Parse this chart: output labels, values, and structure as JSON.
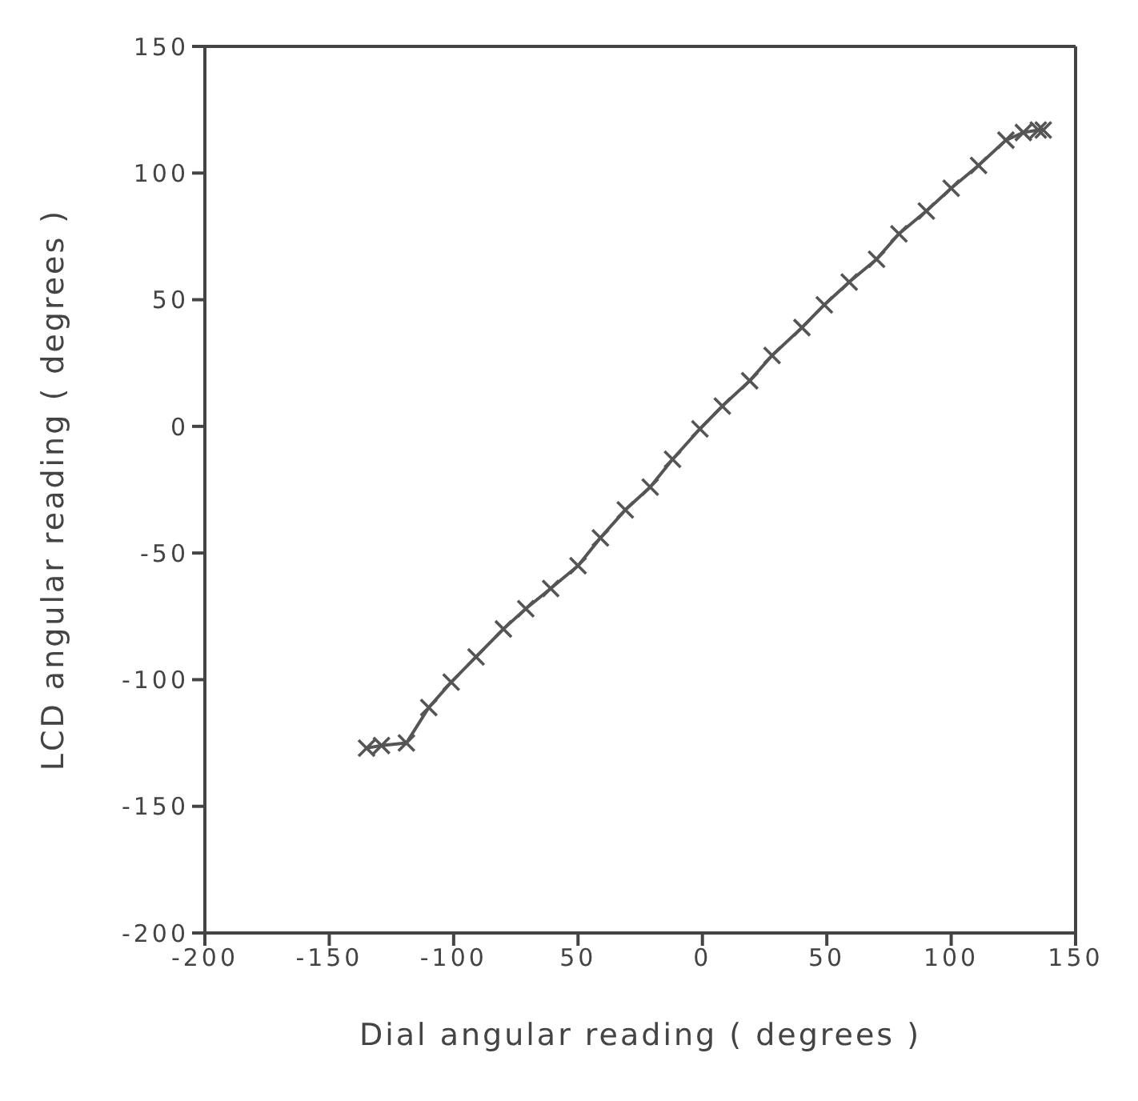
{
  "chart_data": {
    "type": "line",
    "xlabel": "Dial angular reading  ( degrees )",
    "ylabel": "LCD angular reading  ( degrees )",
    "x": [
      -135,
      -129,
      -119,
      -110,
      -101,
      -91,
      -80,
      -71,
      -61,
      -50,
      -41,
      -31,
      -21,
      -12,
      -1,
      8,
      19,
      28,
      40,
      49,
      59,
      70,
      79,
      90,
      100,
      111,
      122,
      129,
      135,
      137
    ],
    "series": [
      {
        "color": "#555555",
        "values": [
          -127,
          -126,
          -125,
          -111,
          -101,
          -91,
          -80,
          -72,
          -64,
          -55,
          -44,
          -33,
          -24,
          -13,
          -1,
          8,
          18,
          28,
          39,
          48,
          57,
          66,
          76,
          85,
          94,
          103,
          113,
          116,
          117,
          117
        ]
      }
    ],
    "xlim": [
      -200,
      150
    ],
    "xticks": [
      -200,
      -150,
      -100,
      {
        "value": -50,
        "label": "50"
      },
      0,
      50,
      100,
      150
    ],
    "ylim": [
      -200,
      150
    ],
    "yticks": [
      -200,
      -150,
      -100,
      -50,
      0,
      50,
      100,
      150
    ],
    "grid": false,
    "legend": false,
    "marker": "cross",
    "line_style": "solid"
  }
}
